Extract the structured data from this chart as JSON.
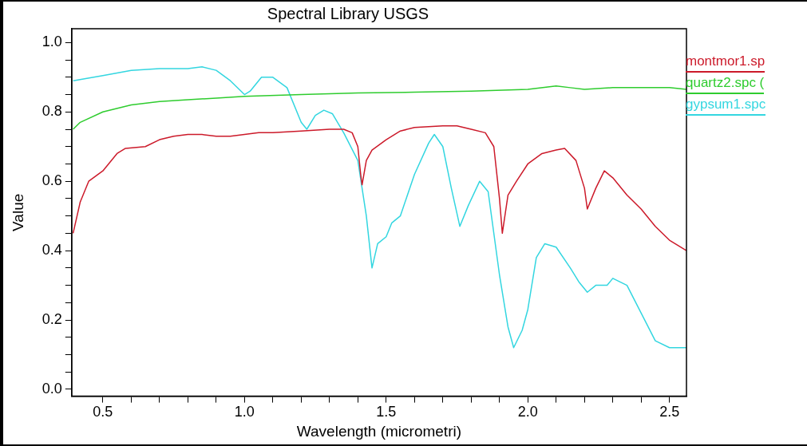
{
  "chart_data": {
    "type": "line",
    "title": "Spectral Library USGS",
    "xlabel": "Wavelength (micrometri)",
    "ylabel": "Value",
    "xlim": [
      0.39,
      2.56
    ],
    "ylim": [
      -0.02,
      1.04
    ],
    "xticks": [
      0.5,
      {
        "value": 0.6,
        "label": null
      },
      {
        "value": 0.7,
        "label": null
      },
      {
        "value": 0.8,
        "label": null
      },
      {
        "value": 0.9,
        "label": null
      },
      {
        "value": 1,
        "label": "1.0"
      },
      {
        "value": 1.1,
        "label": null
      },
      {
        "value": 1.2,
        "label": null
      },
      {
        "value": 1.3,
        "label": null
      },
      {
        "value": 1.4,
        "label": null
      },
      1.5,
      {
        "value": 1.6,
        "label": null
      },
      {
        "value": 1.7,
        "label": null
      },
      {
        "value": 1.8,
        "label": null
      },
      {
        "value": 1.9,
        "label": null
      },
      {
        "value": 2,
        "label": "2.0"
      },
      {
        "value": 2.1,
        "label": null
      },
      {
        "value": 2.2,
        "label": null
      },
      {
        "value": 2.3,
        "label": null
      },
      {
        "value": 2.4,
        "label": null
      },
      2.5
    ],
    "yticks": [
      {
        "value": 0,
        "label": "0.0"
      },
      {
        "value": 0.05,
        "label": null
      },
      {
        "value": 0.1,
        "label": null
      },
      {
        "value": 0.15,
        "label": null
      },
      0.2,
      {
        "value": 0.25,
        "label": null
      },
      {
        "value": 0.3,
        "label": null
      },
      {
        "value": 0.35,
        "label": null
      },
      0.4,
      {
        "value": 0.45,
        "label": null
      },
      {
        "value": 0.5,
        "label": null
      },
      {
        "value": 0.55,
        "label": null
      },
      0.6,
      {
        "value": 0.65,
        "label": null
      },
      {
        "value": 0.7,
        "label": null
      },
      {
        "value": 0.75,
        "label": null
      },
      0.8,
      {
        "value": 0.85,
        "label": null
      },
      {
        "value": 0.9,
        "label": null
      },
      {
        "value": 0.95,
        "label": null
      },
      {
        "value": 1,
        "label": "1.0"
      }
    ],
    "grid": false,
    "legend": "top right",
    "marker": "none",
    "line_style": "solid",
    "series": [
      {
        "name": "montmor1.sp",
        "color": "#cc1a2a",
        "x": [
          0.395,
          0.42,
          0.45,
          0.5,
          0.55,
          0.58,
          0.65,
          0.7,
          0.75,
          0.8,
          0.85,
          0.9,
          0.95,
          1.0,
          1.05,
          1.1,
          1.2,
          1.3,
          1.35,
          1.38,
          1.4,
          1.41,
          1.415,
          1.43,
          1.45,
          1.5,
          1.55,
          1.6,
          1.7,
          1.75,
          1.8,
          1.85,
          1.88,
          1.9,
          1.91,
          1.93,
          1.96,
          2.0,
          2.05,
          2.1,
          2.13,
          2.17,
          2.2,
          2.21,
          2.24,
          2.27,
          2.3,
          2.35,
          2.4,
          2.45,
          2.5,
          2.56
        ],
        "values": [
          0.45,
          0.54,
          0.6,
          0.63,
          0.68,
          0.695,
          0.7,
          0.72,
          0.73,
          0.735,
          0.735,
          0.73,
          0.73,
          0.735,
          0.74,
          0.74,
          0.745,
          0.75,
          0.75,
          0.74,
          0.7,
          0.62,
          0.59,
          0.66,
          0.69,
          0.72,
          0.745,
          0.755,
          0.76,
          0.76,
          0.75,
          0.74,
          0.7,
          0.55,
          0.45,
          0.56,
          0.6,
          0.65,
          0.68,
          0.69,
          0.695,
          0.66,
          0.58,
          0.52,
          0.58,
          0.63,
          0.61,
          0.56,
          0.52,
          0.47,
          0.43,
          0.4
        ]
      },
      {
        "name": "quartz2.spc (",
        "color": "#2ecc2e",
        "x": [
          0.395,
          0.42,
          0.5,
          0.6,
          0.7,
          0.8,
          0.9,
          1.0,
          1.2,
          1.4,
          1.6,
          1.8,
          2.0,
          2.1,
          2.15,
          2.2,
          2.3,
          2.4,
          2.5,
          2.56
        ],
        "values": [
          0.75,
          0.77,
          0.8,
          0.82,
          0.83,
          0.835,
          0.84,
          0.845,
          0.85,
          0.855,
          0.857,
          0.86,
          0.865,
          0.875,
          0.87,
          0.865,
          0.87,
          0.87,
          0.87,
          0.865
        ]
      },
      {
        "name": "gypsum1.spc",
        "color": "#33d6e0",
        "x": [
          0.395,
          0.5,
          0.6,
          0.7,
          0.8,
          0.85,
          0.9,
          0.95,
          1.0,
          1.02,
          1.06,
          1.1,
          1.15,
          1.2,
          1.22,
          1.25,
          1.28,
          1.31,
          1.35,
          1.4,
          1.43,
          1.45,
          1.47,
          1.5,
          1.52,
          1.55,
          1.6,
          1.65,
          1.67,
          1.7,
          1.73,
          1.76,
          1.79,
          1.83,
          1.86,
          1.9,
          1.93,
          1.95,
          1.98,
          2.0,
          2.03,
          2.06,
          2.1,
          2.15,
          2.18,
          2.21,
          2.24,
          2.28,
          2.3,
          2.35,
          2.4,
          2.45,
          2.5,
          2.56
        ],
        "values": [
          0.89,
          0.905,
          0.92,
          0.925,
          0.925,
          0.93,
          0.92,
          0.89,
          0.85,
          0.86,
          0.9,
          0.9,
          0.87,
          0.77,
          0.75,
          0.79,
          0.805,
          0.795,
          0.74,
          0.66,
          0.5,
          0.35,
          0.42,
          0.44,
          0.48,
          0.5,
          0.62,
          0.71,
          0.735,
          0.7,
          0.58,
          0.47,
          0.53,
          0.6,
          0.57,
          0.33,
          0.18,
          0.12,
          0.17,
          0.23,
          0.38,
          0.42,
          0.41,
          0.35,
          0.31,
          0.28,
          0.3,
          0.3,
          0.32,
          0.3,
          0.22,
          0.14,
          0.12,
          0.12
        ]
      }
    ]
  }
}
